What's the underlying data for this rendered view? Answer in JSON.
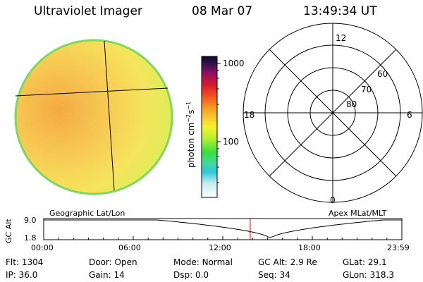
{
  "header": {
    "instrument": "Ultraviolet Imager",
    "date": "08 Mar 07",
    "time": "13:49:34 UT"
  },
  "colorbar": {
    "tick_labels": [
      "1000",
      "100"
    ],
    "unit_main": "photon cm",
    "unit_sup1": "−2",
    "unit_mid": "s",
    "unit_sup2": "−1"
  },
  "polar_plot": {
    "mlt_labels": {
      "top": "12",
      "right": "6",
      "bottom": "0",
      "left": "18"
    },
    "lat_labels": [
      "60",
      "70",
      "80"
    ]
  },
  "altitude_plot": {
    "left_title": "Geographic Lat/Lon",
    "right_title": "Apex MLat/MLT",
    "ylabel": "GC Alt",
    "y_ticks": [
      "9.0",
      "1.8"
    ],
    "x_ticks": [
      "00:00",
      "06:00",
      "12:00",
      "18:00",
      "23:59"
    ],
    "current_time_fraction": 0.5765,
    "colors": {
      "current_marker": "#dd0000"
    }
  },
  "status": {
    "row1": [
      {
        "label": "Flt:",
        "value": "1304"
      },
      {
        "label": "Door:",
        "value": "Open"
      },
      {
        "label": "Mode:",
        "value": "Normal"
      },
      {
        "label": "GC Alt:",
        "value": "2.9 Re"
      },
      {
        "label": "GLat:",
        "value": "29.1"
      }
    ],
    "row2": [
      {
        "label": "IP:",
        "value": "36.0"
      },
      {
        "label": "Gain:",
        "value": "14"
      },
      {
        "label": "Dsp:",
        "value": "0.0"
      },
      {
        "label": "Seq:",
        "value": "34"
      },
      {
        "label": "GLon:",
        "value": "318.3"
      }
    ]
  }
}
